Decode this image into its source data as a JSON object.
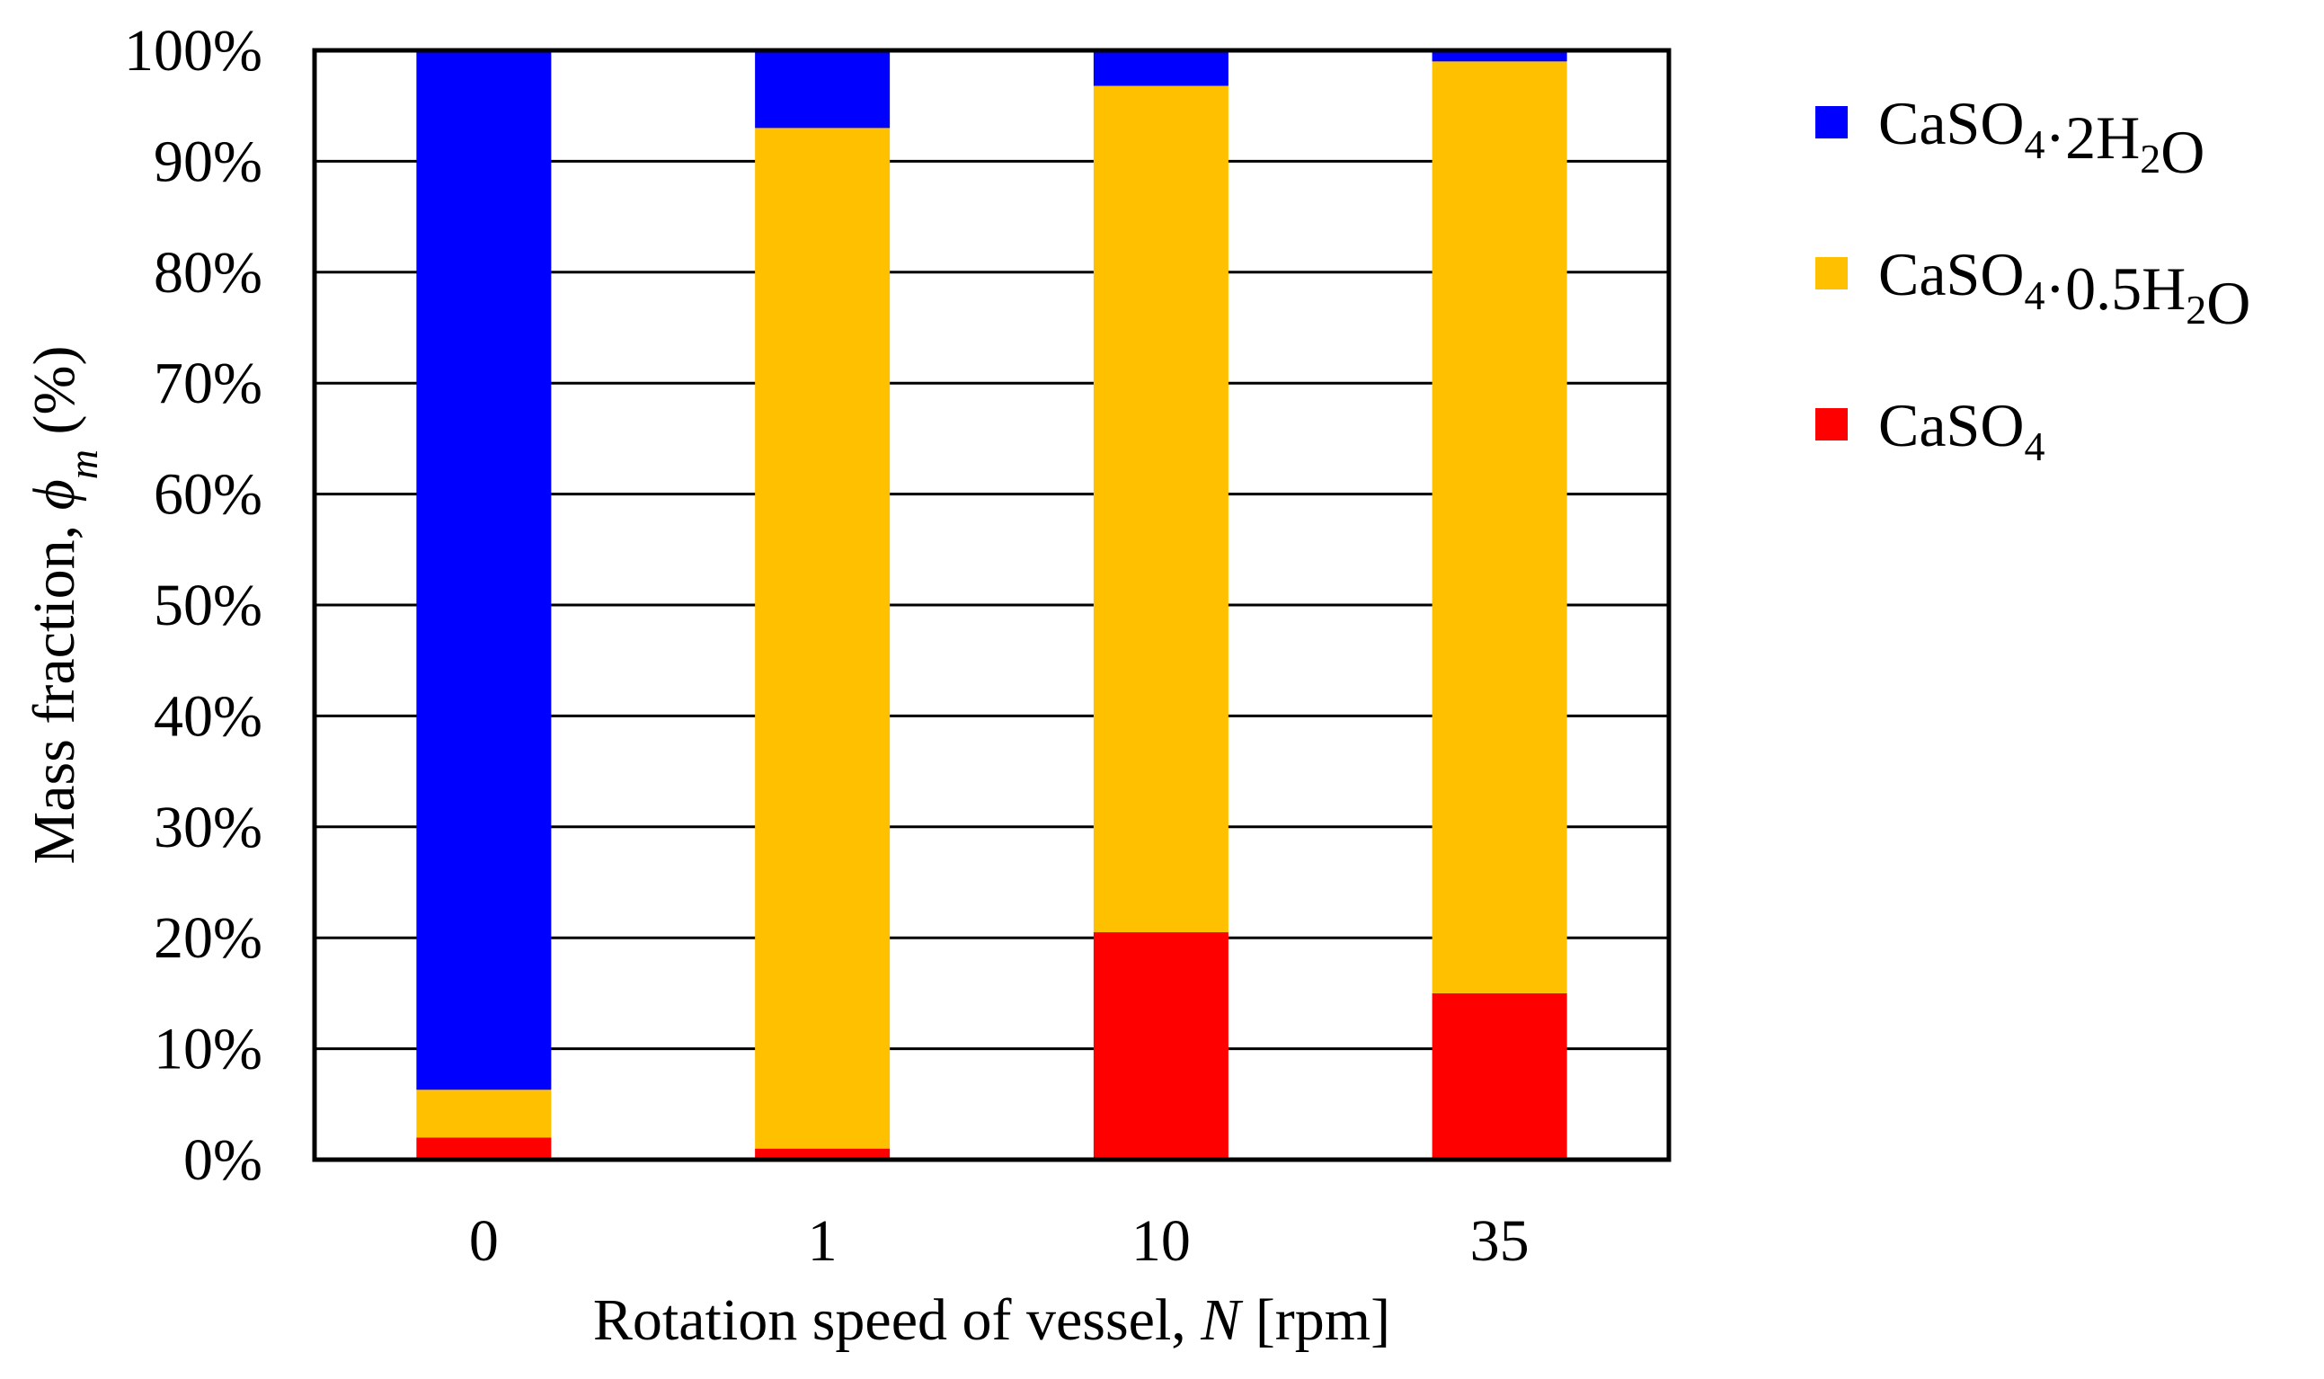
{
  "chart_data": {
    "type": "bar",
    "stacked": true,
    "title": "",
    "categories": [
      "0",
      "1",
      "10",
      "35"
    ],
    "series": [
      {
        "name": "CaSO4",
        "color": "#FF0000",
        "values": [
          2.0,
          1.0,
          20.5,
          15.0
        ]
      },
      {
        "name": "CaSO4·0.5H2O",
        "color": "#FFC000",
        "values": [
          4.3,
          92.0,
          76.3,
          84.0
        ]
      },
      {
        "name": "CaSO4·2H2O",
        "color": "#0000FF",
        "values": [
          93.7,
          7.0,
          3.2,
          1.0
        ]
      }
    ],
    "legend_order": [
      "CaSO4·2H2O",
      "CaSO4·0.5H2O",
      "CaSO4"
    ],
    "legend_position": "right",
    "xlabel": {
      "prefix": "Rotation speed of vessel, ",
      "var": "N",
      "suffix": " [rpm]"
    },
    "ylabel": {
      "prefix": "Mass fraction, ",
      "var": "ϕ",
      "var_sub": "m",
      "suffix": " (%)"
    },
    "ylim": [
      0,
      100
    ],
    "yticks": [
      0,
      10,
      20,
      30,
      40,
      50,
      60,
      70,
      80,
      90,
      100
    ],
    "ytick_labels": [
      "0%",
      "10%",
      "20%",
      "30%",
      "40%",
      "50%",
      "60%",
      "70%",
      "80%",
      "90%",
      "100%"
    ],
    "grid": true
  }
}
